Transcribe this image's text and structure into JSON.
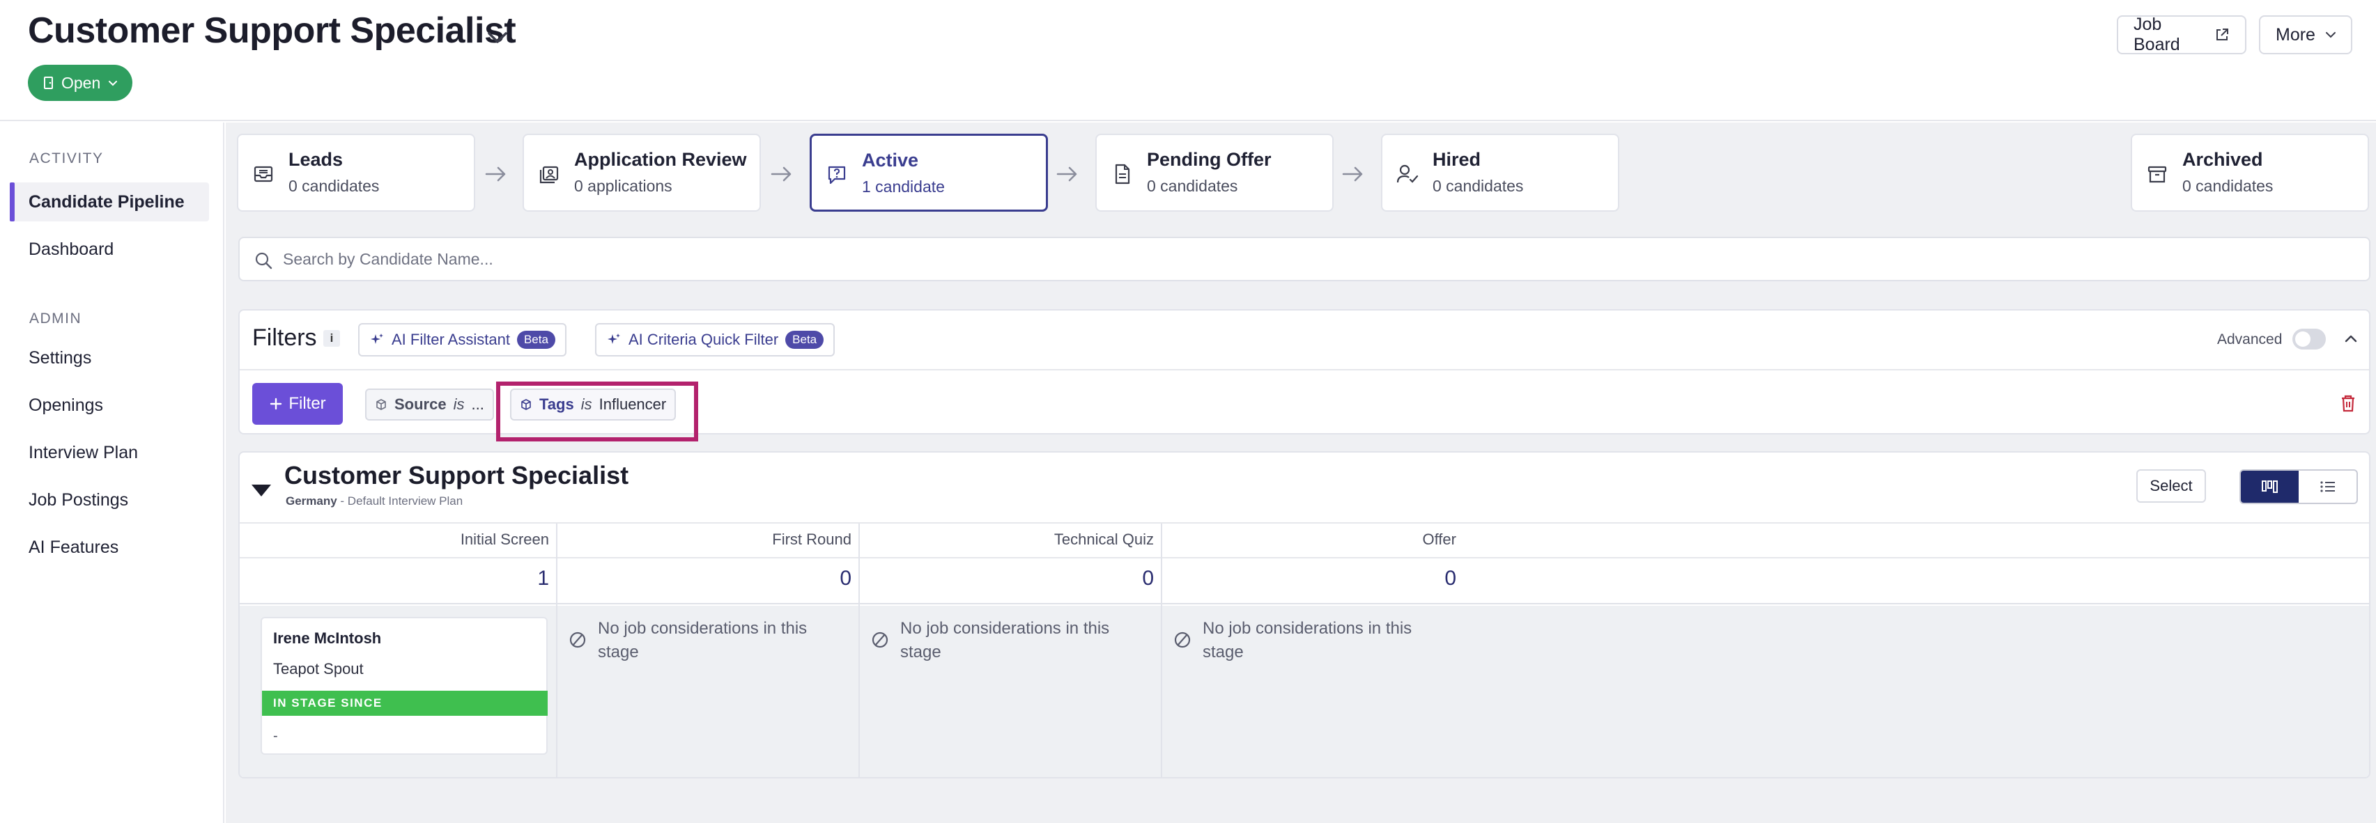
{
  "header": {
    "title": "Customer Support Specialist",
    "status": "Open",
    "job_board_label": "Job Board",
    "more_label": "More"
  },
  "sidebar": {
    "activity_heading": "ACTIVITY",
    "activity_items": [
      {
        "label": "Candidate Pipeline",
        "active": true
      },
      {
        "label": "Dashboard",
        "active": false
      }
    ],
    "admin_heading": "ADMIN",
    "admin_items": [
      {
        "label": "Settings"
      },
      {
        "label": "Openings"
      },
      {
        "label": "Interview Plan"
      },
      {
        "label": "Job Postings"
      },
      {
        "label": "AI Features"
      }
    ]
  },
  "stages": [
    {
      "name": "Leads",
      "count": "0 candidates",
      "icon": "inbox-icon"
    },
    {
      "name": "Application Review",
      "count": "0 applications",
      "icon": "review-icon"
    },
    {
      "name": "Active",
      "count": "1 candidate",
      "icon": "chat-question-icon",
      "active": true
    },
    {
      "name": "Pending Offer",
      "count": "0 candidates",
      "icon": "document-icon"
    },
    {
      "name": "Hired",
      "count": "0 candidates",
      "icon": "user-check-icon"
    },
    {
      "name": "Archived",
      "count": "0 candidates",
      "icon": "archive-icon"
    }
  ],
  "search": {
    "placeholder": "Search by Candidate Name..."
  },
  "filters": {
    "title": "Filters",
    "info": "i",
    "ai_filter_assistant": "AI Filter Assistant",
    "ai_criteria_quick_filter": "AI Criteria Quick Filter",
    "beta": "Beta",
    "advanced_label": "Advanced",
    "advanced_on": false,
    "filter_button": "Filter",
    "chips": [
      {
        "key": "Source",
        "op": "is",
        "value": "..."
      },
      {
        "key": "Tags",
        "op": "is",
        "value": "Influencer"
      }
    ]
  },
  "pipeline": {
    "title": "Customer Support Specialist",
    "location": "Germany",
    "plan": " - Default Interview Plan",
    "select_label": "Select",
    "columns": [
      {
        "label": "Initial Screen",
        "count": "1"
      },
      {
        "label": "First Round",
        "count": "0"
      },
      {
        "label": "Technical Quiz",
        "count": "0"
      },
      {
        "label": "Offer",
        "count": "0"
      }
    ],
    "candidate": {
      "name": "Irene McIntosh",
      "tag": "Teapot Spout",
      "stage_label": "IN STAGE SINCE",
      "stage_value": "-"
    },
    "empty_message": "No job considerations in this stage"
  },
  "colors": {
    "accent": "#6b4fd8",
    "status_green": "#2f9e5f",
    "active_stage": "#3a3d8f",
    "highlight": "#b3226d",
    "stage_bar": "#3fbf4f"
  }
}
